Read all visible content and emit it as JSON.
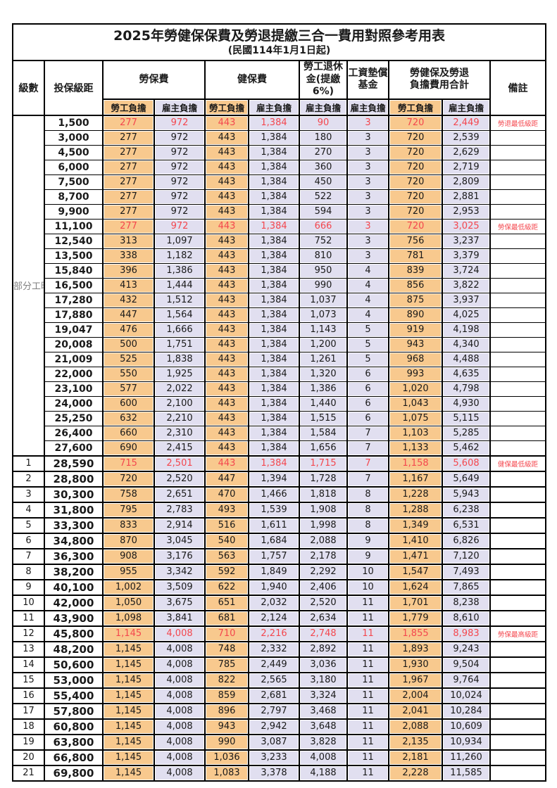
{
  "title": {
    "line1": "2025年勞健保保費及勞退提繳三合一費用對照參考用表",
    "line2": "(民國114年1月1日起)"
  },
  "colors": {
    "employee_bg_orange": "#f8c98e",
    "employer_bg_lavender": "#e1dff0",
    "highlight_red": "#f4474e"
  },
  "header": {
    "level": "級數",
    "bracket": "投保級距",
    "labor_fee": "勞保費",
    "health_fee": "健保費",
    "pension": "勞工退休\n金(提繳6%)",
    "wage_fund": "工資墊償\n基金",
    "total": "勞健保及勞退\n負擔費用合計",
    "remark": "備註",
    "employee": "勞工負擔",
    "employer": "雇主負擔"
  },
  "part_time_label": "部分工時",
  "rows": [
    {
      "section": "pt",
      "level": "",
      "bracket": "1,500",
      "values": [
        "277",
        "972",
        "443",
        "1,384",
        "90",
        "3",
        "720",
        "2,449"
      ],
      "remark": "勞退最低級距",
      "red": true
    },
    {
      "section": "pt",
      "level": "",
      "bracket": "3,000",
      "values": [
        "277",
        "972",
        "443",
        "1,384",
        "180",
        "3",
        "720",
        "2,539"
      ],
      "remark": "",
      "red": false
    },
    {
      "section": "pt",
      "level": "",
      "bracket": "4,500",
      "values": [
        "277",
        "972",
        "443",
        "1,384",
        "270",
        "3",
        "720",
        "2,629"
      ],
      "remark": "",
      "red": false
    },
    {
      "section": "pt",
      "level": "",
      "bracket": "6,000",
      "values": [
        "277",
        "972",
        "443",
        "1,384",
        "360",
        "3",
        "720",
        "2,719"
      ],
      "remark": "",
      "red": false
    },
    {
      "section": "pt",
      "level": "",
      "bracket": "7,500",
      "values": [
        "277",
        "972",
        "443",
        "1,384",
        "450",
        "3",
        "720",
        "2,809"
      ],
      "remark": "",
      "red": false
    },
    {
      "section": "pt",
      "level": "",
      "bracket": "8,700",
      "values": [
        "277",
        "972",
        "443",
        "1,384",
        "522",
        "3",
        "720",
        "2,881"
      ],
      "remark": "",
      "red": false
    },
    {
      "section": "pt",
      "level": "",
      "bracket": "9,900",
      "values": [
        "277",
        "972",
        "443",
        "1,384",
        "594",
        "3",
        "720",
        "2,953"
      ],
      "remark": "",
      "red": false
    },
    {
      "section": "pt",
      "level": "",
      "bracket": "11,100",
      "values": [
        "277",
        "972",
        "443",
        "1,384",
        "666",
        "3",
        "720",
        "3,025"
      ],
      "remark": "勞保最低級距",
      "red": true
    },
    {
      "section": "pt",
      "level": "",
      "bracket": "12,540",
      "values": [
        "313",
        "1,097",
        "443",
        "1,384",
        "752",
        "3",
        "756",
        "3,237"
      ],
      "remark": "",
      "red": false
    },
    {
      "section": "pt",
      "level": "",
      "bracket": "13,500",
      "values": [
        "338",
        "1,182",
        "443",
        "1,384",
        "810",
        "3",
        "781",
        "3,379"
      ],
      "remark": "",
      "red": false
    },
    {
      "section": "pt",
      "level": "",
      "bracket": "15,840",
      "values": [
        "396",
        "1,386",
        "443",
        "1,384",
        "950",
        "4",
        "839",
        "3,724"
      ],
      "remark": "",
      "red": false
    },
    {
      "section": "pt",
      "level": "",
      "bracket": "16,500",
      "values": [
        "413",
        "1,444",
        "443",
        "1,384",
        "990",
        "4",
        "856",
        "3,822"
      ],
      "remark": "",
      "red": false
    },
    {
      "section": "pt",
      "level": "",
      "bracket": "17,280",
      "values": [
        "432",
        "1,512",
        "443",
        "1,384",
        "1,037",
        "4",
        "875",
        "3,937"
      ],
      "remark": "",
      "red": false
    },
    {
      "section": "pt",
      "level": "",
      "bracket": "17,880",
      "values": [
        "447",
        "1,564",
        "443",
        "1,384",
        "1,073",
        "4",
        "890",
        "4,025"
      ],
      "remark": "",
      "red": false
    },
    {
      "section": "pt",
      "level": "",
      "bracket": "19,047",
      "values": [
        "476",
        "1,666",
        "443",
        "1,384",
        "1,143",
        "5",
        "919",
        "4,198"
      ],
      "remark": "",
      "red": false
    },
    {
      "section": "pt",
      "level": "",
      "bracket": "20,008",
      "values": [
        "500",
        "1,751",
        "443",
        "1,384",
        "1,200",
        "5",
        "943",
        "4,340"
      ],
      "remark": "",
      "red": false
    },
    {
      "section": "pt",
      "level": "",
      "bracket": "21,009",
      "values": [
        "525",
        "1,838",
        "443",
        "1,384",
        "1,261",
        "5",
        "968",
        "4,488"
      ],
      "remark": "",
      "red": false
    },
    {
      "section": "pt",
      "level": "",
      "bracket": "22,000",
      "values": [
        "550",
        "1,925",
        "443",
        "1,384",
        "1,320",
        "6",
        "993",
        "4,635"
      ],
      "remark": "",
      "red": false
    },
    {
      "section": "pt",
      "level": "",
      "bracket": "23,100",
      "values": [
        "577",
        "2,022",
        "443",
        "1,384",
        "1,386",
        "6",
        "1,020",
        "4,798"
      ],
      "remark": "",
      "red": false
    },
    {
      "section": "pt",
      "level": "",
      "bracket": "24,000",
      "values": [
        "600",
        "2,100",
        "443",
        "1,384",
        "1,440",
        "6",
        "1,043",
        "4,930"
      ],
      "remark": "",
      "red": false
    },
    {
      "section": "pt",
      "level": "",
      "bracket": "25,250",
      "values": [
        "632",
        "2,210",
        "443",
        "1,384",
        "1,515",
        "6",
        "1,075",
        "5,115"
      ],
      "remark": "",
      "red": false
    },
    {
      "section": "pt",
      "level": "",
      "bracket": "26,400",
      "values": [
        "660",
        "2,310",
        "443",
        "1,384",
        "1,584",
        "7",
        "1,103",
        "5,285"
      ],
      "remark": "",
      "red": false
    },
    {
      "section": "pt",
      "level": "",
      "bracket": "27,600",
      "values": [
        "690",
        "2,415",
        "443",
        "1,384",
        "1,656",
        "7",
        "1,133",
        "5,462"
      ],
      "remark": "",
      "red": false
    },
    {
      "section": "num",
      "level": "1",
      "bracket": "28,590",
      "values": [
        "715",
        "2,501",
        "443",
        "1,384",
        "1,715",
        "7",
        "1,158",
        "5,608"
      ],
      "remark": "健保最低級距",
      "red": true
    },
    {
      "section": "num",
      "level": "2",
      "bracket": "28,800",
      "values": [
        "720",
        "2,520",
        "447",
        "1,394",
        "1,728",
        "7",
        "1,167",
        "5,649"
      ],
      "remark": "",
      "red": false
    },
    {
      "section": "num",
      "level": "3",
      "bracket": "30,300",
      "values": [
        "758",
        "2,651",
        "470",
        "1,466",
        "1,818",
        "8",
        "1,228",
        "5,943"
      ],
      "remark": "",
      "red": false
    },
    {
      "section": "num",
      "level": "4",
      "bracket": "31,800",
      "values": [
        "795",
        "2,783",
        "493",
        "1,539",
        "1,908",
        "8",
        "1,288",
        "6,238"
      ],
      "remark": "",
      "red": false
    },
    {
      "section": "num",
      "level": "5",
      "bracket": "33,300",
      "values": [
        "833",
        "2,914",
        "516",
        "1,611",
        "1,998",
        "8",
        "1,349",
        "6,531"
      ],
      "remark": "",
      "red": false
    },
    {
      "section": "num",
      "level": "6",
      "bracket": "34,800",
      "values": [
        "870",
        "3,045",
        "540",
        "1,684",
        "2,088",
        "9",
        "1,410",
        "6,826"
      ],
      "remark": "",
      "red": false
    },
    {
      "section": "num",
      "level": "7",
      "bracket": "36,300",
      "values": [
        "908",
        "3,176",
        "563",
        "1,757",
        "2,178",
        "9",
        "1,471",
        "7,120"
      ],
      "remark": "",
      "red": false
    },
    {
      "section": "num",
      "level": "8",
      "bracket": "38,200",
      "values": [
        "955",
        "3,342",
        "592",
        "1,849",
        "2,292",
        "10",
        "1,547",
        "7,493"
      ],
      "remark": "",
      "red": false
    },
    {
      "section": "num",
      "level": "9",
      "bracket": "40,100",
      "values": [
        "1,002",
        "3,509",
        "622",
        "1,940",
        "2,406",
        "10",
        "1,624",
        "7,865"
      ],
      "remark": "",
      "red": false
    },
    {
      "section": "num",
      "level": "10",
      "bracket": "42,000",
      "values": [
        "1,050",
        "3,675",
        "651",
        "2,032",
        "2,520",
        "11",
        "1,701",
        "8,238"
      ],
      "remark": "",
      "red": false
    },
    {
      "section": "num",
      "level": "11",
      "bracket": "43,900",
      "values": [
        "1,098",
        "3,841",
        "681",
        "2,124",
        "2,634",
        "11",
        "1,779",
        "8,610"
      ],
      "remark": "",
      "red": false
    },
    {
      "section": "num",
      "level": "12",
      "bracket": "45,800",
      "values": [
        "1,145",
        "4,008",
        "710",
        "2,216",
        "2,748",
        "11",
        "1,855",
        "8,983"
      ],
      "remark": "勞保最高級距",
      "red": true
    },
    {
      "section": "num",
      "level": "13",
      "bracket": "48,200",
      "values": [
        "1,145",
        "4,008",
        "748",
        "2,332",
        "2,892",
        "11",
        "1,893",
        "9,243"
      ],
      "remark": "",
      "red": false
    },
    {
      "section": "num",
      "level": "14",
      "bracket": "50,600",
      "values": [
        "1,145",
        "4,008",
        "785",
        "2,449",
        "3,036",
        "11",
        "1,930",
        "9,504"
      ],
      "remark": "",
      "red": false
    },
    {
      "section": "num",
      "level": "15",
      "bracket": "53,000",
      "values": [
        "1,145",
        "4,008",
        "822",
        "2,565",
        "3,180",
        "11",
        "1,967",
        "9,764"
      ],
      "remark": "",
      "red": false
    },
    {
      "section": "num",
      "level": "16",
      "bracket": "55,400",
      "values": [
        "1,145",
        "4,008",
        "859",
        "2,681",
        "3,324",
        "11",
        "2,004",
        "10,024"
      ],
      "remark": "",
      "red": false
    },
    {
      "section": "num",
      "level": "17",
      "bracket": "57,800",
      "values": [
        "1,145",
        "4,008",
        "896",
        "2,797",
        "3,468",
        "11",
        "2,041",
        "10,284"
      ],
      "remark": "",
      "red": false
    },
    {
      "section": "num",
      "level": "18",
      "bracket": "60,800",
      "values": [
        "1,145",
        "4,008",
        "943",
        "2,942",
        "3,648",
        "11",
        "2,088",
        "10,609"
      ],
      "remark": "",
      "red": false
    },
    {
      "section": "num",
      "level": "19",
      "bracket": "63,800",
      "values": [
        "1,145",
        "4,008",
        "990",
        "3,087",
        "3,828",
        "11",
        "2,135",
        "10,934"
      ],
      "remark": "",
      "red": false
    },
    {
      "section": "num",
      "level": "20",
      "bracket": "66,800",
      "values": [
        "1,145",
        "4,008",
        "1,036",
        "3,233",
        "4,008",
        "11",
        "2,181",
        "11,260"
      ],
      "remark": "",
      "red": false
    },
    {
      "section": "num",
      "level": "21",
      "bracket": "69,800",
      "values": [
        "1,145",
        "4,008",
        "1,083",
        "3,378",
        "4,188",
        "11",
        "2,228",
        "11,585"
      ],
      "remark": "",
      "red": false
    }
  ],
  "value_column_styles": [
    "orange",
    "lav",
    "orange",
    "lav",
    "lav",
    "lav",
    "orange",
    "lav"
  ]
}
